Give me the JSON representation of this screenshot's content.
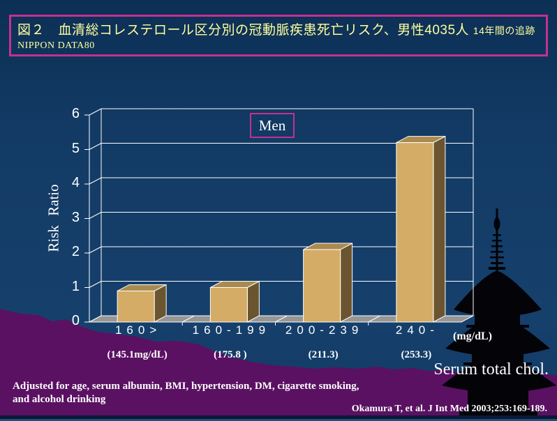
{
  "title": {
    "line1_main": "図２　血清総コレステロール区分別の冠動脈疾患死亡リスク、男性4035人",
    "line1_small": "14年間の追跡",
    "line2": "NIPPON DATA80"
  },
  "footer": {
    "note_line1": "Adjusted for age, serum albumin, BMI, hypertension, DM, cigarette smoking,",
    "note_line2": "and alcohol drinking",
    "citation": "Okamura T, et al. J Int Med 2003;253:169-189."
  },
  "colors": {
    "background_navy": "#123A64",
    "title_text": "#FFFF9E",
    "accent_magenta": "#C5308F",
    "bar_front": "#D4AC66",
    "bar_top": "#AA8A4E",
    "bar_side": "#6B5530",
    "floor_gray": "#969696",
    "mountain_purple": "#5A1162",
    "pagoda_black": "#030308",
    "gridline": "#FFFFFF",
    "bottom_strip": "#0A1A36",
    "bottom_line": "#31619B"
  },
  "chart_data": {
    "type": "bar",
    "style": "3d-column",
    "title": "Men",
    "ylabel": "Risk  Ratio",
    "ylim": [
      0,
      6
    ],
    "yticks": [
      0,
      1,
      2,
      3,
      4,
      5,
      6
    ],
    "grid": true,
    "categories": [
      "160>",
      "160-199",
      "200-239",
      "240-"
    ],
    "category_means": [
      "(145.1mg/dL)",
      "(175.8 )",
      "(211.3)",
      "(253.3)"
    ],
    "values": [
      0.9,
      1.0,
      2.1,
      5.2
    ],
    "x_unit": "(mg/dL)",
    "x_axis_title": "Serum total chol."
  }
}
